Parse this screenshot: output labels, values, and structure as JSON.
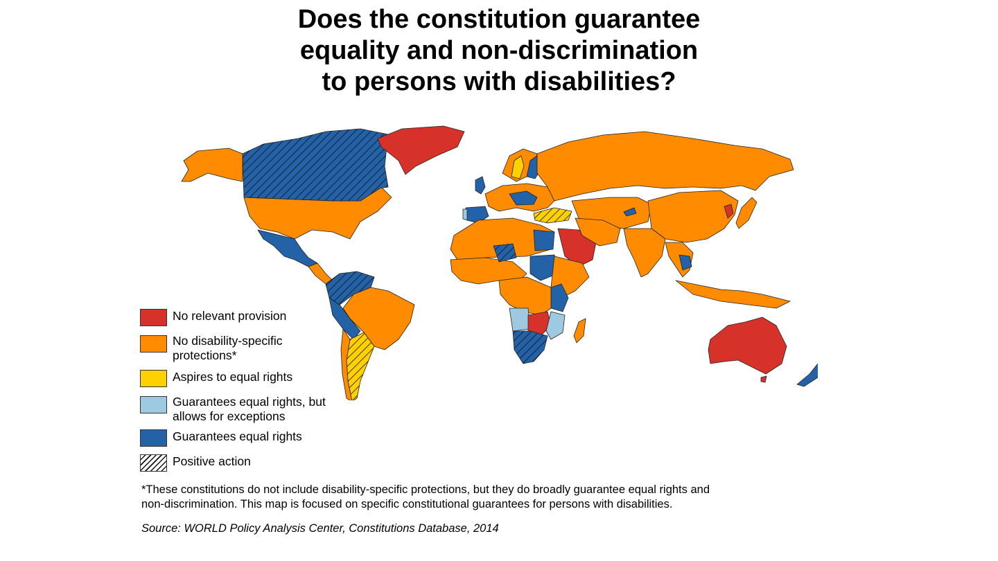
{
  "title": {
    "line1": "Does the constitution guarantee",
    "line2": "equality and non-discrimination",
    "line3": "to persons with disabilities?"
  },
  "colors": {
    "no_relevant_provision": "#d7322a",
    "no_disability_specific": "#ff8c00",
    "aspires": "#ffd100",
    "exceptions": "#9ecae1",
    "guarantees": "#2462a8",
    "hatch": "#111111",
    "border": "#222222"
  },
  "legend": [
    {
      "key": "no_relevant_provision",
      "label_lines": [
        "No relevant provision"
      ]
    },
    {
      "key": "no_disability_specific",
      "label_lines": [
        "No disability-specific",
        "protections*"
      ]
    },
    {
      "key": "aspires",
      "label_lines": [
        "Aspires to equal rights"
      ]
    },
    {
      "key": "exceptions",
      "label_lines": [
        "Guarantees equal rights, but",
        "allows for exceptions"
      ]
    },
    {
      "key": "guarantees",
      "label_lines": [
        "Guarantees equal rights"
      ]
    },
    {
      "key": "positive_action",
      "label_lines": [
        "Positive action"
      ]
    }
  ],
  "footnote": {
    "line1": "*These constitutions do not include disability-specific protections, but they do broadly guarantee equal rights and",
    "line2": "non-discrimination. This map is focused on specific constitutional guarantees for persons with disabilities."
  },
  "source": "Source: WORLD Policy Analysis Center, Constitutions Database, 2014"
}
